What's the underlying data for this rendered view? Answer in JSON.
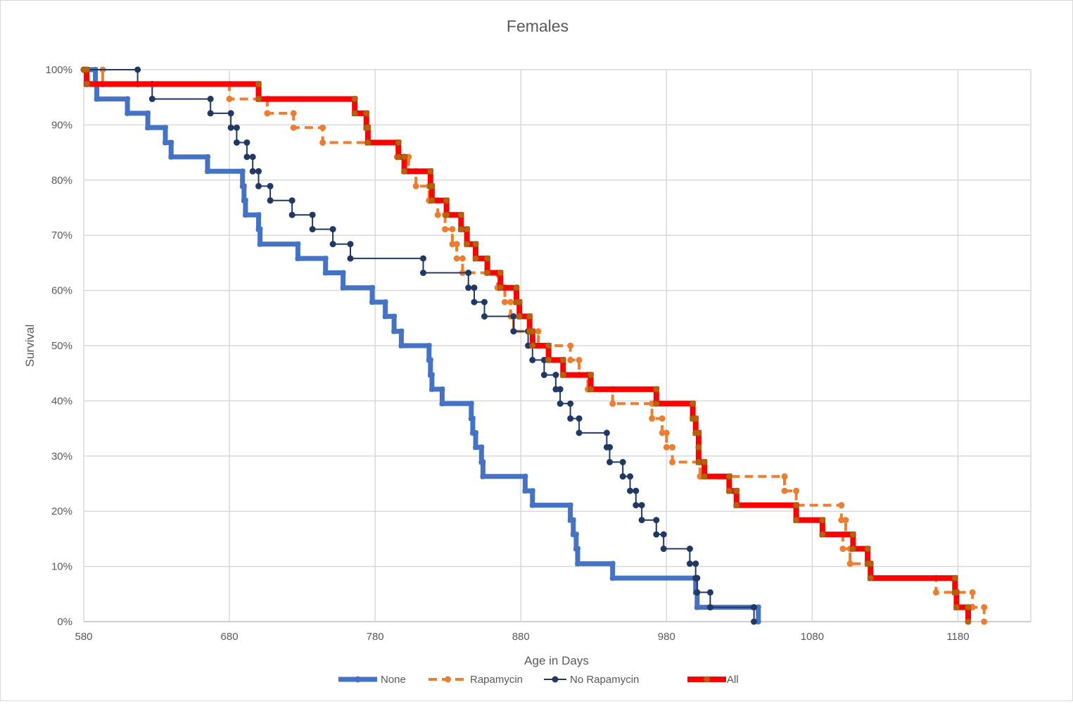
{
  "chart_data": {
    "type": "line",
    "step": true,
    "title": "Females",
    "xlabel": "Age in Days",
    "ylabel": "Survival",
    "xlim": [
      580,
      1230
    ],
    "ylim": [
      0,
      1
    ],
    "xticks": [
      580,
      680,
      780,
      880,
      980,
      1080,
      1180
    ],
    "yticks": [
      0,
      0.1,
      0.2,
      0.3,
      0.4,
      0.5,
      0.6,
      0.7,
      0.8,
      0.9,
      1.0
    ],
    "ytick_labels": [
      "0%",
      "10%",
      "20%",
      "30%",
      "40%",
      "50%",
      "60%",
      "70%",
      "80%",
      "90%",
      "100%"
    ],
    "grid": true,
    "legend_position": "bottom",
    "series": [
      {
        "name": "None",
        "color": "#4472c4",
        "dash": false,
        "width": 7,
        "points": [
          [
            580,
            1.0
          ],
          [
            588,
            1.0
          ],
          [
            588,
            0.973
          ],
          [
            589,
            0.973
          ],
          [
            589,
            0.947
          ],
          [
            610,
            0.947
          ],
          [
            610,
            0.921
          ],
          [
            624,
            0.921
          ],
          [
            624,
            0.895
          ],
          [
            636,
            0.895
          ],
          [
            636,
            0.868
          ],
          [
            640,
            0.868
          ],
          [
            640,
            0.842
          ],
          [
            665,
            0.842
          ],
          [
            665,
            0.816
          ],
          [
            689,
            0.816
          ],
          [
            689,
            0.789
          ],
          [
            690,
            0.789
          ],
          [
            690,
            0.763
          ],
          [
            691,
            0.763
          ],
          [
            691,
            0.737
          ],
          [
            700,
            0.737
          ],
          [
            700,
            0.711
          ],
          [
            701,
            0.711
          ],
          [
            701,
            0.684
          ],
          [
            727,
            0.684
          ],
          [
            727,
            0.658
          ],
          [
            746,
            0.658
          ],
          [
            746,
            0.632
          ],
          [
            758,
            0.632
          ],
          [
            758,
            0.605
          ],
          [
            778,
            0.605
          ],
          [
            778,
            0.579
          ],
          [
            787,
            0.579
          ],
          [
            787,
            0.553
          ],
          [
            793,
            0.553
          ],
          [
            793,
            0.526
          ],
          [
            798,
            0.526
          ],
          [
            798,
            0.5
          ],
          [
            817,
            0.5
          ],
          [
            817,
            0.474
          ],
          [
            818,
            0.474
          ],
          [
            818,
            0.447
          ],
          [
            819,
            0.447
          ],
          [
            819,
            0.421
          ],
          [
            826,
            0.421
          ],
          [
            826,
            0.395
          ],
          [
            846,
            0.395
          ],
          [
            846,
            0.368
          ],
          [
            847,
            0.368
          ],
          [
            847,
            0.342
          ],
          [
            849,
            0.342
          ],
          [
            849,
            0.316
          ],
          [
            853,
            0.316
          ],
          [
            853,
            0.289
          ],
          [
            854,
            0.289
          ],
          [
            854,
            0.263
          ],
          [
            883,
            0.263
          ],
          [
            883,
            0.237
          ],
          [
            888,
            0.237
          ],
          [
            888,
            0.211
          ],
          [
            914,
            0.211
          ],
          [
            914,
            0.184
          ],
          [
            916,
            0.184
          ],
          [
            916,
            0.158
          ],
          [
            918,
            0.158
          ],
          [
            918,
            0.132
          ],
          [
            919,
            0.132
          ],
          [
            919,
            0.105
          ],
          [
            943,
            0.105
          ],
          [
            943,
            0.079
          ],
          [
            1000,
            0.079
          ],
          [
            1000,
            0.053
          ],
          [
            1001,
            0.053
          ],
          [
            1001,
            0.026
          ],
          [
            1043,
            0.026
          ],
          [
            1043,
            0.0
          ]
        ]
      },
      {
        "name": "Rapamycin",
        "color": "#ed7d31",
        "dash": true,
        "width": 4,
        "points": [
          [
            580,
            1.0
          ],
          [
            582,
            1.0
          ],
          [
            582,
            0.974
          ],
          [
            593,
            0.974
          ],
          [
            593,
            1.0
          ],
          [
            593,
            0.974
          ],
          [
            680,
            0.974
          ],
          [
            680,
            0.947
          ],
          [
            706,
            0.947
          ],
          [
            706,
            0.921
          ],
          [
            724,
            0.921
          ],
          [
            724,
            0.895
          ],
          [
            744,
            0.895
          ],
          [
            744,
            0.868
          ],
          [
            795,
            0.868
          ],
          [
            795,
            0.842
          ],
          [
            803,
            0.842
          ],
          [
            803,
            0.816
          ],
          [
            808,
            0.816
          ],
          [
            808,
            0.789
          ],
          [
            817,
            0.789
          ],
          [
            817,
            0.763
          ],
          [
            823,
            0.763
          ],
          [
            823,
            0.737
          ],
          [
            828,
            0.737
          ],
          [
            828,
            0.711
          ],
          [
            833,
            0.711
          ],
          [
            833,
            0.684
          ],
          [
            836,
            0.684
          ],
          [
            836,
            0.658
          ],
          [
            840,
            0.658
          ],
          [
            840,
            0.632
          ],
          [
            864,
            0.632
          ],
          [
            864,
            0.605
          ],
          [
            869,
            0.605
          ],
          [
            869,
            0.579
          ],
          [
            873,
            0.579
          ],
          [
            873,
            0.553
          ],
          [
            875,
            0.553
          ],
          [
            875,
            0.526
          ],
          [
            892,
            0.526
          ],
          [
            892,
            0.5
          ],
          [
            914,
            0.5
          ],
          [
            914,
            0.474
          ],
          [
            920,
            0.474
          ],
          [
            920,
            0.447
          ],
          [
            926,
            0.447
          ],
          [
            926,
            0.421
          ],
          [
            943,
            0.421
          ],
          [
            943,
            0.395
          ],
          [
            970,
            0.395
          ],
          [
            970,
            0.368
          ],
          [
            977,
            0.368
          ],
          [
            977,
            0.342
          ],
          [
            980,
            0.342
          ],
          [
            980,
            0.316
          ],
          [
            984,
            0.316
          ],
          [
            984,
            0.289
          ],
          [
            1003,
            0.289
          ],
          [
            1003,
            0.263
          ],
          [
            1061,
            0.263
          ],
          [
            1061,
            0.237
          ],
          [
            1069,
            0.237
          ],
          [
            1069,
            0.211
          ],
          [
            1100,
            0.211
          ],
          [
            1100,
            0.184
          ],
          [
            1103,
            0.184
          ],
          [
            1103,
            0.158
          ],
          [
            1101,
            0.158
          ],
          [
            1101,
            0.132
          ],
          [
            1106,
            0.132
          ],
          [
            1106,
            0.105
          ],
          [
            1120,
            0.105
          ],
          [
            1120,
            0.079
          ],
          [
            1165,
            0.079
          ],
          [
            1165,
            0.053
          ],
          [
            1190,
            0.053
          ],
          [
            1190,
            0.026
          ],
          [
            1198,
            0.026
          ],
          [
            1198,
            0.0
          ]
        ]
      },
      {
        "name": "No Rapamycin",
        "color": "#203864",
        "dash": false,
        "width": 2,
        "points": [
          [
            580,
            1.0
          ],
          [
            617,
            1.0
          ],
          [
            617,
            0.974
          ],
          [
            627,
            0.974
          ],
          [
            627,
            0.947
          ],
          [
            667,
            0.947
          ],
          [
            667,
            0.921
          ],
          [
            681,
            0.921
          ],
          [
            681,
            0.895
          ],
          [
            685,
            0.895
          ],
          [
            685,
            0.868
          ],
          [
            692,
            0.868
          ],
          [
            692,
            0.842
          ],
          [
            696,
            0.842
          ],
          [
            696,
            0.816
          ],
          [
            700,
            0.816
          ],
          [
            700,
            0.789
          ],
          [
            708,
            0.789
          ],
          [
            708,
            0.763
          ],
          [
            723,
            0.763
          ],
          [
            723,
            0.737
          ],
          [
            737,
            0.737
          ],
          [
            737,
            0.711
          ],
          [
            751,
            0.711
          ],
          [
            751,
            0.684
          ],
          [
            763,
            0.684
          ],
          [
            763,
            0.658
          ],
          [
            813,
            0.658
          ],
          [
            813,
            0.632
          ],
          [
            844,
            0.632
          ],
          [
            844,
            0.605
          ],
          [
            848,
            0.605
          ],
          [
            848,
            0.579
          ],
          [
            855,
            0.579
          ],
          [
            855,
            0.553
          ],
          [
            875,
            0.553
          ],
          [
            875,
            0.526
          ],
          [
            885,
            0.526
          ],
          [
            885,
            0.5
          ],
          [
            888,
            0.5
          ],
          [
            888,
            0.474
          ],
          [
            896,
            0.474
          ],
          [
            896,
            0.447
          ],
          [
            904,
            0.447
          ],
          [
            904,
            0.421
          ],
          [
            907,
            0.421
          ],
          [
            907,
            0.395
          ],
          [
            914,
            0.395
          ],
          [
            914,
            0.368
          ],
          [
            920,
            0.368
          ],
          [
            920,
            0.342
          ],
          [
            939,
            0.342
          ],
          [
            939,
            0.316
          ],
          [
            941,
            0.316
          ],
          [
            941,
            0.289
          ],
          [
            950,
            0.289
          ],
          [
            950,
            0.263
          ],
          [
            955,
            0.263
          ],
          [
            955,
            0.237
          ],
          [
            959,
            0.237
          ],
          [
            959,
            0.211
          ],
          [
            963,
            0.211
          ],
          [
            963,
            0.184
          ],
          [
            973,
            0.184
          ],
          [
            973,
            0.158
          ],
          [
            978,
            0.158
          ],
          [
            978,
            0.132
          ],
          [
            996,
            0.132
          ],
          [
            996,
            0.105
          ],
          [
            1000,
            0.105
          ],
          [
            1000,
            0.079
          ],
          [
            1001,
            0.079
          ],
          [
            1001,
            0.053
          ],
          [
            1010,
            0.053
          ],
          [
            1010,
            0.026
          ],
          [
            1040,
            0.026
          ],
          [
            1040,
            0.0
          ]
        ]
      },
      {
        "name": "All",
        "color": "#ff0000",
        "dash": false,
        "width": 8,
        "points": [
          [
            580,
            1.0
          ],
          [
            582,
            1.0
          ],
          [
            582,
            0.974
          ],
          [
            700,
            0.974
          ],
          [
            700,
            0.947
          ],
          [
            766,
            0.947
          ],
          [
            766,
            0.921
          ],
          [
            774,
            0.921
          ],
          [
            774,
            0.895
          ],
          [
            775,
            0.895
          ],
          [
            775,
            0.868
          ],
          [
            796,
            0.868
          ],
          [
            796,
            0.842
          ],
          [
            800,
            0.842
          ],
          [
            800,
            0.816
          ],
          [
            818,
            0.816
          ],
          [
            818,
            0.789
          ],
          [
            819,
            0.789
          ],
          [
            819,
            0.763
          ],
          [
            829,
            0.763
          ],
          [
            829,
            0.737
          ],
          [
            839,
            0.737
          ],
          [
            839,
            0.711
          ],
          [
            843,
            0.711
          ],
          [
            843,
            0.684
          ],
          [
            849,
            0.684
          ],
          [
            849,
            0.658
          ],
          [
            857,
            0.658
          ],
          [
            857,
            0.632
          ],
          [
            866,
            0.632
          ],
          [
            866,
            0.605
          ],
          [
            877,
            0.605
          ],
          [
            877,
            0.579
          ],
          [
            879,
            0.579
          ],
          [
            879,
            0.553
          ],
          [
            886,
            0.553
          ],
          [
            886,
            0.526
          ],
          [
            888,
            0.526
          ],
          [
            888,
            0.5
          ],
          [
            899,
            0.5
          ],
          [
            899,
            0.474
          ],
          [
            909,
            0.474
          ],
          [
            909,
            0.447
          ],
          [
            928,
            0.447
          ],
          [
            928,
            0.421
          ],
          [
            973,
            0.421
          ],
          [
            973,
            0.395
          ],
          [
            998,
            0.395
          ],
          [
            998,
            0.368
          ],
          [
            1000,
            0.368
          ],
          [
            1000,
            0.342
          ],
          [
            1002,
            0.342
          ],
          [
            1002,
            0.316
          ],
          [
            1002,
            0.289
          ],
          [
            1006,
            0.289
          ],
          [
            1006,
            0.263
          ],
          [
            1023,
            0.263
          ],
          [
            1023,
            0.237
          ],
          [
            1028,
            0.237
          ],
          [
            1028,
            0.211
          ],
          [
            1069,
            0.211
          ],
          [
            1069,
            0.184
          ],
          [
            1087,
            0.184
          ],
          [
            1087,
            0.158
          ],
          [
            1108,
            0.158
          ],
          [
            1108,
            0.132
          ],
          [
            1118,
            0.132
          ],
          [
            1118,
            0.105
          ],
          [
            1120,
            0.105
          ],
          [
            1120,
            0.079
          ],
          [
            1178,
            0.079
          ],
          [
            1178,
            0.053
          ],
          [
            1179,
            0.053
          ],
          [
            1179,
            0.026
          ],
          [
            1187,
            0.026
          ],
          [
            1187,
            0.0
          ]
        ]
      }
    ]
  }
}
